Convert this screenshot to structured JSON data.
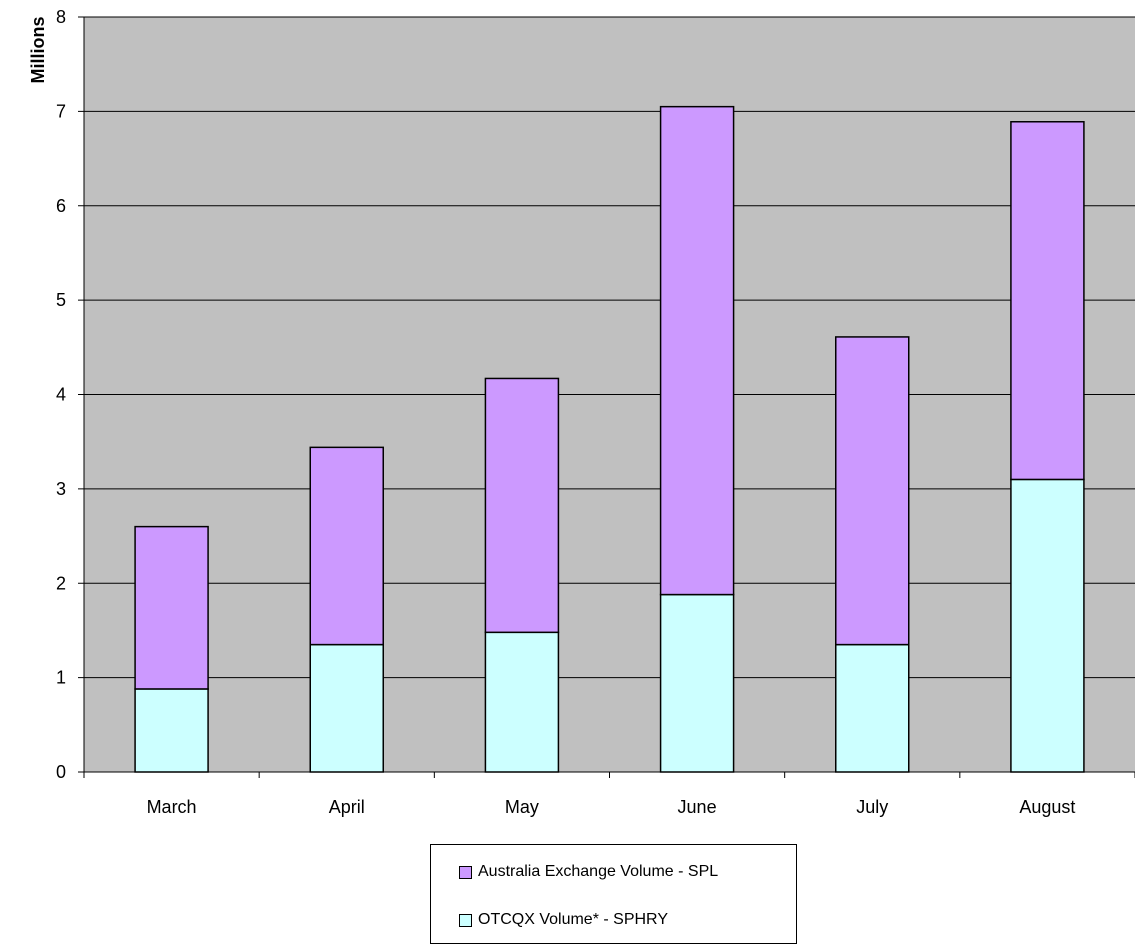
{
  "chart_data": {
    "type": "bar",
    "stacked": true,
    "title": "",
    "xlabel": "",
    "ylabel": "Millions",
    "ylim": [
      0,
      8
    ],
    "yticks": [
      "0",
      "1",
      "2",
      "3",
      "4",
      "5",
      "6",
      "7",
      "8"
    ],
    "grid": true,
    "legend_position": "bottom",
    "categories": [
      "March",
      "April",
      "May",
      "June",
      "July",
      "August"
    ],
    "series": [
      {
        "name": "OTCQX Volume* - SPHRY",
        "color": "#CCFFFF",
        "values": [
          0.88,
          1.35,
          1.48,
          1.88,
          1.35,
          3.1
        ]
      },
      {
        "name": "Australia Exchange Volume - SPL",
        "color": "#CC99FF",
        "values": [
          1.72,
          2.09,
          2.69,
          5.17,
          3.26,
          3.79
        ]
      }
    ],
    "totals": [
      2.6,
      3.44,
      4.17,
      7.05,
      4.61,
      6.89
    ],
    "plot_background": "#C0C0C0"
  },
  "legend": {
    "items": [
      {
        "label": "Australia Exchange Volume - SPL",
        "color": "#CC99FF"
      },
      {
        "label": "OTCQX Volume* - SPHRY",
        "color": "#CCFFFF"
      }
    ]
  }
}
